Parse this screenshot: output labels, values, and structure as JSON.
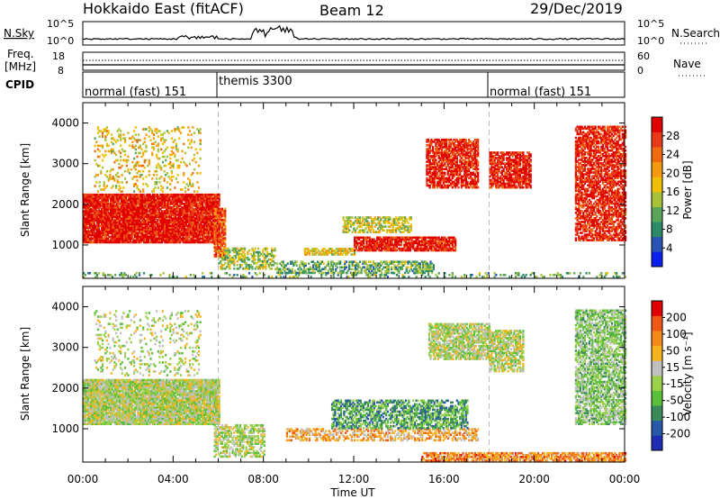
{
  "header": {
    "title": "Hokkaido East (fitACF)",
    "beam": "Beam 12",
    "date": "29/Dec/2019"
  },
  "sky_panel": {
    "label": "N.Sky",
    "right_label": "N.Search",
    "y_ticks": [
      "10^5",
      "10^0"
    ],
    "right_ticks": [
      "10^5",
      "10^0"
    ]
  },
  "freq_panel": {
    "label_top": "Freq.",
    "label_bottom": "[MHz]",
    "y_ticks": [
      "18",
      "8"
    ],
    "right_ticks": [
      "60",
      "0"
    ],
    "right_label": "Nave"
  },
  "cpid_panel": {
    "label": "CPID",
    "segments": [
      {
        "label": "normal (fast) 151",
        "start": 0,
        "end": 6
      },
      {
        "label": "themis 3300",
        "start": 6,
        "end": 18
      },
      {
        "label": "normal (fast) 151",
        "start": 18,
        "end": 24
      }
    ]
  },
  "chart_data": [
    {
      "type": "heatmap",
      "name": "power",
      "ylabel": "Slant Range [km]",
      "xlabel": "Time UT",
      "x_range_hours": [
        0,
        24
      ],
      "ylim": [
        180,
        4500
      ],
      "y_ticks": [
        1000,
        2000,
        3000,
        4000
      ],
      "x_ticks": [
        "00:00",
        "04:00",
        "08:00",
        "12:00",
        "16:00",
        "20:00",
        "00:00"
      ],
      "colorbar": {
        "label": "Power [dB]",
        "ticks": [
          "4",
          "8",
          "12",
          "16",
          "20",
          "24",
          "28"
        ],
        "colors": [
          "#0a1ef0",
          "#2a54b4",
          "#2e8a66",
          "#5aa55a",
          "#a8c23a",
          "#f0c000",
          "#f59a10",
          "#f06a10",
          "#e83a18",
          "#e00000"
        ]
      },
      "regions": [
        {
          "t0": 0.0,
          "t1": 6.0,
          "r0": 1050,
          "r1": 2250,
          "level": 0.93,
          "density": 0.95
        },
        {
          "t0": 0.5,
          "t1": 5.2,
          "r0": 2300,
          "r1": 3900,
          "level": 0.55,
          "density": 0.18
        },
        {
          "t0": 5.8,
          "t1": 6.3,
          "r0": 700,
          "r1": 1900,
          "level": 0.8,
          "density": 0.8
        },
        {
          "t0": 6.0,
          "t1": 8.5,
          "r0": 400,
          "r1": 900,
          "level": 0.45,
          "density": 0.5
        },
        {
          "t0": 8.5,
          "t1": 15.5,
          "r0": 300,
          "r1": 600,
          "level": 0.35,
          "density": 0.55
        },
        {
          "t0": 9.8,
          "t1": 12.0,
          "r0": 750,
          "r1": 900,
          "level": 0.55,
          "density": 0.7
        },
        {
          "t0": 12.0,
          "t1": 16.5,
          "r0": 850,
          "r1": 1200,
          "level": 0.92,
          "density": 0.85
        },
        {
          "t0": 11.5,
          "t1": 14.5,
          "r0": 1300,
          "r1": 1700,
          "level": 0.5,
          "density": 0.6
        },
        {
          "t0": 15.2,
          "t1": 17.5,
          "r0": 2400,
          "r1": 3600,
          "level": 0.9,
          "density": 0.75
        },
        {
          "t0": 18.0,
          "t1": 19.8,
          "r0": 2400,
          "r1": 3300,
          "level": 0.92,
          "density": 0.8
        },
        {
          "t0": 21.8,
          "t1": 24.0,
          "r0": 1100,
          "r1": 3900,
          "level": 0.9,
          "density": 0.7
        },
        {
          "t0": 0.0,
          "t1": 24.0,
          "r0": 200,
          "r1": 330,
          "level": 0.35,
          "density": 0.2
        }
      ]
    },
    {
      "type": "heatmap",
      "name": "velocity",
      "ylabel": "Slant Range [km]",
      "xlabel": "Time UT",
      "x_range_hours": [
        0,
        24
      ],
      "ylim": [
        180,
        4500
      ],
      "y_ticks": [
        1000,
        2000,
        3000,
        4000
      ],
      "x_ticks": [
        "00:00",
        "04:00",
        "08:00",
        "12:00",
        "16:00",
        "20:00",
        "00:00"
      ],
      "colorbar": {
        "label": "Velocity [m s⁻¹]",
        "ticks": [
          "200",
          "100",
          "50",
          "15",
          "-15",
          "-50",
          "-100",
          "-200"
        ],
        "colors": [
          "#1e2db4",
          "#2858a8",
          "#3a8a5a",
          "#5cbf3c",
          "#9ad04a",
          "#c0c0c0",
          "#f5b320",
          "#f58a18",
          "#f05818",
          "#e00000"
        ]
      },
      "regions": [
        {
          "t0": 0.0,
          "t1": 6.0,
          "r0": 1100,
          "r1": 2200,
          "level": 0.5,
          "density": 0.95
        },
        {
          "t0": 0.5,
          "t1": 5.2,
          "r0": 2300,
          "r1": 3900,
          "level": 0.5,
          "density": 0.15
        },
        {
          "t0": 5.8,
          "t1": 8.0,
          "r0": 300,
          "r1": 1100,
          "level": 0.5,
          "density": 0.55
        },
        {
          "t0": 9.0,
          "t1": 17.5,
          "r0": 700,
          "r1": 1000,
          "level": 0.68,
          "density": 0.5
        },
        {
          "t0": 11.0,
          "t1": 17.0,
          "r0": 1000,
          "r1": 1700,
          "level": 0.3,
          "density": 0.6
        },
        {
          "t0": 15.3,
          "t1": 18.0,
          "r0": 2700,
          "r1": 3600,
          "level": 0.5,
          "density": 0.75
        },
        {
          "t0": 18.0,
          "t1": 19.5,
          "r0": 2400,
          "r1": 3400,
          "level": 0.5,
          "density": 0.7
        },
        {
          "t0": 21.8,
          "t1": 24.0,
          "r0": 1100,
          "r1": 3900,
          "level": 0.42,
          "density": 0.65
        },
        {
          "t0": 15.0,
          "t1": 24.0,
          "r0": 200,
          "r1": 400,
          "level": 0.75,
          "density": 0.7
        }
      ]
    }
  ]
}
